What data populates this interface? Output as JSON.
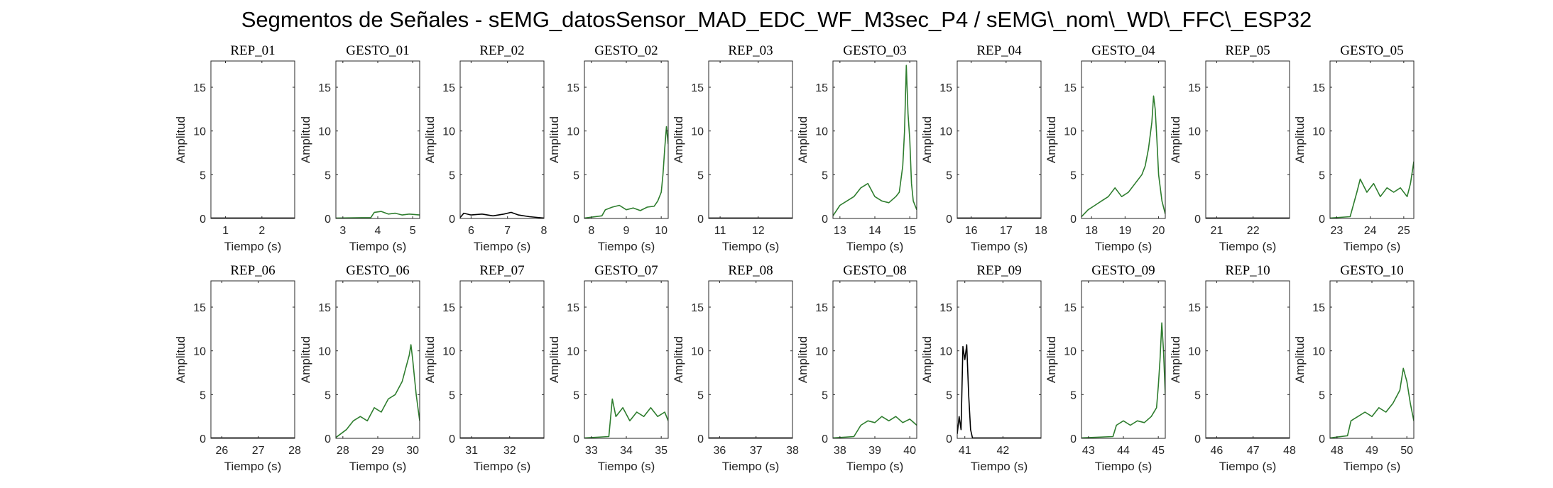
{
  "figure": {
    "title": "Segmentos de Señales - sEMG_datosSensor_MAD_EDC_WF_M3sec_P4 / sEMG\\_nom\\_WD\\_FFC\\_ESP32"
  },
  "colors": {
    "gesto": "#2e7d2e",
    "rep": "#000000",
    "axis": "#262626"
  },
  "chart_data": [
    {
      "type": "line",
      "title": "REP_01",
      "xlabel": "Tiempo (s)",
      "ylabel": "Amplitud",
      "xlim": [
        0.6,
        2.9
      ],
      "ylim": [
        0,
        18
      ],
      "xticks": [
        1,
        2
      ],
      "yticks": [
        0,
        5,
        10,
        15
      ],
      "series": [
        {
          "color": "#000000",
          "x": [
            0.6,
            2.9
          ],
          "y": [
            0.05,
            0.05
          ]
        }
      ]
    },
    {
      "type": "line",
      "title": "GESTO_01",
      "xlabel": "Tiempo (s)",
      "ylabel": "Amplitud",
      "xlim": [
        2.8,
        5.2
      ],
      "ylim": [
        0,
        18
      ],
      "xticks": [
        3,
        4,
        5
      ],
      "yticks": [
        0,
        5,
        10,
        15
      ],
      "series": [
        {
          "color": "#2e7d2e",
          "x": [
            2.8,
            3.8,
            3.9,
            4.1,
            4.3,
            4.5,
            4.7,
            4.9,
            5.2
          ],
          "y": [
            0.05,
            0.1,
            0.7,
            0.8,
            0.5,
            0.6,
            0.4,
            0.5,
            0.4
          ]
        }
      ]
    },
    {
      "type": "line",
      "title": "REP_02",
      "xlabel": "Tiempo (s)",
      "ylabel": "Amplitud",
      "xlim": [
        5.7,
        8.0
      ],
      "ylim": [
        0,
        18
      ],
      "xticks": [
        6,
        7,
        8
      ],
      "yticks": [
        0,
        5,
        10,
        15
      ],
      "series": [
        {
          "color": "#000000",
          "x": [
            5.7,
            5.8,
            6.0,
            6.3,
            6.6,
            6.9,
            7.1,
            7.3,
            7.6,
            8.0
          ],
          "y": [
            0.1,
            0.6,
            0.4,
            0.5,
            0.3,
            0.5,
            0.7,
            0.4,
            0.2,
            0.05
          ]
        }
      ]
    },
    {
      "type": "line",
      "title": "GESTO_02",
      "xlabel": "Tiempo (s)",
      "ylabel": "Amplitud",
      "xlim": [
        7.8,
        10.2
      ],
      "ylim": [
        0,
        18
      ],
      "xticks": [
        8,
        9,
        10
      ],
      "yticks": [
        0,
        5,
        10,
        15
      ],
      "series": [
        {
          "color": "#2e7d2e",
          "x": [
            7.8,
            8.3,
            8.4,
            8.6,
            8.8,
            9.0,
            9.2,
            9.4,
            9.6,
            9.8,
            9.9,
            10.0,
            10.05,
            10.1,
            10.15,
            10.2
          ],
          "y": [
            0.05,
            0.3,
            1.0,
            1.3,
            1.5,
            1.0,
            1.2,
            0.9,
            1.3,
            1.4,
            2.0,
            3.0,
            5.0,
            8.0,
            10.5,
            8.5
          ]
        }
      ]
    },
    {
      "type": "line",
      "title": "REP_03",
      "xlabel": "Tiempo (s)",
      "ylabel": "Amplitud",
      "xlim": [
        10.7,
        12.9
      ],
      "ylim": [
        0,
        18
      ],
      "xticks": [
        11,
        12
      ],
      "yticks": [
        0,
        5,
        10,
        15
      ],
      "series": [
        {
          "color": "#000000",
          "x": [
            10.7,
            12.9
          ],
          "y": [
            0.05,
            0.05
          ]
        }
      ]
    },
    {
      "type": "line",
      "title": "GESTO_03",
      "xlabel": "Tiempo (s)",
      "ylabel": "Amplitud",
      "xlim": [
        12.8,
        15.2
      ],
      "ylim": [
        0,
        18
      ],
      "xticks": [
        13,
        14,
        15
      ],
      "yticks": [
        0,
        5,
        10,
        15
      ],
      "series": [
        {
          "color": "#2e7d2e",
          "x": [
            12.8,
            13.0,
            13.2,
            13.4,
            13.6,
            13.8,
            14.0,
            14.2,
            14.4,
            14.6,
            14.7,
            14.8,
            14.85,
            14.9,
            14.95,
            15.0,
            15.05,
            15.1,
            15.2
          ],
          "y": [
            0.3,
            1.5,
            2.0,
            2.5,
            3.5,
            4.0,
            2.5,
            2.0,
            1.8,
            2.5,
            3.0,
            6.0,
            10.0,
            17.5,
            12.0,
            9.0,
            4.0,
            2.0,
            1.0
          ]
        }
      ]
    },
    {
      "type": "line",
      "title": "REP_04",
      "xlabel": "Tiempo (s)",
      "ylabel": "Amplitud",
      "xlim": [
        15.6,
        18.0
      ],
      "ylim": [
        0,
        18
      ],
      "xticks": [
        16,
        17,
        18
      ],
      "yticks": [
        0,
        5,
        10,
        15
      ],
      "series": [
        {
          "color": "#000000",
          "x": [
            15.6,
            18.0
          ],
          "y": [
            0.05,
            0.05
          ]
        }
      ]
    },
    {
      "type": "line",
      "title": "GESTO_04",
      "xlabel": "Tiempo (s)",
      "ylabel": "Amplitud",
      "xlim": [
        17.7,
        20.2
      ],
      "ylim": [
        0,
        18
      ],
      "xticks": [
        18,
        19,
        20
      ],
      "yticks": [
        0,
        5,
        10,
        15
      ],
      "series": [
        {
          "color": "#2e7d2e",
          "x": [
            17.7,
            17.9,
            18.1,
            18.3,
            18.5,
            18.7,
            18.9,
            19.1,
            19.3,
            19.5,
            19.6,
            19.7,
            19.8,
            19.85,
            19.9,
            19.95,
            20.0,
            20.1,
            20.2
          ],
          "y": [
            0.2,
            1.0,
            1.5,
            2.0,
            2.5,
            3.5,
            2.5,
            3.0,
            4.0,
            5.0,
            6.0,
            8.0,
            11.0,
            14.0,
            12.5,
            9.0,
            5.0,
            2.0,
            0.5
          ]
        }
      ]
    },
    {
      "type": "line",
      "title": "REP_05",
      "xlabel": "Tiempo (s)",
      "ylabel": "Amplitud",
      "xlim": [
        20.7,
        23.0
      ],
      "ylim": [
        0,
        18
      ],
      "xticks": [
        21,
        22
      ],
      "yticks": [
        0,
        5,
        10,
        15
      ],
      "series": [
        {
          "color": "#000000",
          "x": [
            20.7,
            23.0
          ],
          "y": [
            0.05,
            0.05
          ]
        }
      ]
    },
    {
      "type": "line",
      "title": "GESTO_05",
      "xlabel": "Tiempo (s)",
      "ylabel": "Amplitud",
      "xlim": [
        22.8,
        25.3
      ],
      "ylim": [
        0,
        18
      ],
      "xticks": [
        23,
        24,
        25
      ],
      "yticks": [
        0,
        5,
        10,
        15
      ],
      "series": [
        {
          "color": "#2e7d2e",
          "x": [
            22.8,
            23.4,
            23.6,
            23.7,
            23.9,
            24.1,
            24.3,
            24.5,
            24.7,
            24.9,
            25.1,
            25.2,
            25.3
          ],
          "y": [
            0.05,
            0.2,
            3.0,
            4.5,
            3.0,
            4.0,
            2.5,
            3.5,
            3.0,
            3.5,
            2.5,
            4.0,
            6.5
          ]
        }
      ]
    },
    {
      "type": "line",
      "title": "REP_06",
      "xlabel": "Tiempo (s)",
      "ylabel": "Amplitud",
      "xlim": [
        25.7,
        28.0
      ],
      "ylim": [
        0,
        18
      ],
      "xticks": [
        26,
        27,
        28
      ],
      "yticks": [
        0,
        5,
        10,
        15
      ],
      "series": [
        {
          "color": "#000000",
          "x": [
            25.7,
            28.0
          ],
          "y": [
            0.05,
            0.05
          ]
        }
      ]
    },
    {
      "type": "line",
      "title": "GESTO_06",
      "xlabel": "Tiempo (s)",
      "ylabel": "Amplitud",
      "xlim": [
        27.8,
        30.2
      ],
      "ylim": [
        0,
        18
      ],
      "xticks": [
        28,
        29,
        30
      ],
      "yticks": [
        0,
        5,
        10,
        15
      ],
      "series": [
        {
          "color": "#2e7d2e",
          "x": [
            27.8,
            28.1,
            28.3,
            28.5,
            28.7,
            28.9,
            29.1,
            29.3,
            29.5,
            29.7,
            29.8,
            29.9,
            29.95,
            30.0,
            30.05,
            30.1,
            30.2
          ],
          "y": [
            0.1,
            1.0,
            2.0,
            2.5,
            2.0,
            3.5,
            3.0,
            4.5,
            5.0,
            6.5,
            8.0,
            9.5,
            10.7,
            9.0,
            7.0,
            5.0,
            2.0
          ]
        }
      ]
    },
    {
      "type": "line",
      "title": "REP_07",
      "xlabel": "Tiempo (s)",
      "ylabel": "Amplitud",
      "xlim": [
        30.7,
        32.9
      ],
      "ylim": [
        0,
        18
      ],
      "xticks": [
        31,
        32
      ],
      "yticks": [
        0,
        5,
        10,
        15
      ],
      "series": [
        {
          "color": "#000000",
          "x": [
            30.7,
            32.9
          ],
          "y": [
            0.05,
            0.05
          ]
        }
      ]
    },
    {
      "type": "line",
      "title": "GESTO_07",
      "xlabel": "Tiempo (s)",
      "ylabel": "Amplitud",
      "xlim": [
        32.8,
        35.2
      ],
      "ylim": [
        0,
        18
      ],
      "xticks": [
        33,
        34,
        35
      ],
      "yticks": [
        0,
        5,
        10,
        15
      ],
      "series": [
        {
          "color": "#2e7d2e",
          "x": [
            32.8,
            33.5,
            33.6,
            33.7,
            33.9,
            34.1,
            34.3,
            34.5,
            34.7,
            34.9,
            35.1,
            35.2
          ],
          "y": [
            0.05,
            0.2,
            4.5,
            2.5,
            3.5,
            2.0,
            3.0,
            2.5,
            3.5,
            2.5,
            3.0,
            2.0
          ]
        }
      ]
    },
    {
      "type": "line",
      "title": "REP_08",
      "xlabel": "Tiempo (s)",
      "ylabel": "Amplitud",
      "xlim": [
        35.7,
        38.0
      ],
      "ylim": [
        0,
        18
      ],
      "xticks": [
        36,
        37,
        38
      ],
      "yticks": [
        0,
        5,
        10,
        15
      ],
      "series": [
        {
          "color": "#000000",
          "x": [
            35.7,
            38.0
          ],
          "y": [
            0.05,
            0.05
          ]
        }
      ]
    },
    {
      "type": "line",
      "title": "GESTO_08",
      "xlabel": "Tiempo (s)",
      "ylabel": "Amplitud",
      "xlim": [
        37.8,
        40.2
      ],
      "ylim": [
        0,
        18
      ],
      "xticks": [
        38,
        39,
        40
      ],
      "yticks": [
        0,
        5,
        10,
        15
      ],
      "series": [
        {
          "color": "#2e7d2e",
          "x": [
            37.8,
            38.4,
            38.6,
            38.8,
            39.0,
            39.2,
            39.4,
            39.6,
            39.8,
            40.0,
            40.2
          ],
          "y": [
            0.05,
            0.2,
            1.5,
            2.0,
            1.8,
            2.5,
            2.0,
            2.5,
            1.8,
            2.2,
            1.5
          ]
        }
      ]
    },
    {
      "type": "line",
      "title": "REP_09",
      "xlabel": "Tiempo (s)",
      "ylabel": "Amplitud",
      "xlim": [
        40.8,
        43.0
      ],
      "ylim": [
        0,
        18
      ],
      "xticks": [
        41,
        42
      ],
      "yticks": [
        0,
        5,
        10,
        15
      ],
      "series": [
        {
          "color": "#000000",
          "x": [
            40.8,
            40.85,
            40.9,
            40.95,
            41.0,
            41.05,
            41.1,
            41.15,
            41.2,
            43.0
          ],
          "y": [
            0.5,
            2.5,
            1.0,
            10.5,
            9.0,
            10.7,
            5.0,
            1.0,
            0.05,
            0.05
          ]
        }
      ]
    },
    {
      "type": "line",
      "title": "GESTO_09",
      "xlabel": "Tiempo (s)",
      "ylabel": "Amplitud",
      "xlim": [
        42.8,
        45.2
      ],
      "ylim": [
        0,
        18
      ],
      "xticks": [
        43,
        44,
        45
      ],
      "yticks": [
        0,
        5,
        10,
        15
      ],
      "series": [
        {
          "color": "#2e7d2e",
          "x": [
            42.8,
            43.7,
            43.8,
            44.0,
            44.2,
            44.4,
            44.6,
            44.8,
            44.95,
            45.0,
            45.05,
            45.1,
            45.15,
            45.2
          ],
          "y": [
            0.05,
            0.2,
            1.5,
            2.0,
            1.5,
            2.0,
            1.8,
            2.5,
            3.5,
            6.0,
            9.0,
            13.2,
            10.0,
            5.0
          ]
        }
      ]
    },
    {
      "type": "line",
      "title": "REP_10",
      "xlabel": "Tiempo (s)",
      "ylabel": "Amplitud",
      "xlim": [
        45.7,
        48.0
      ],
      "ylim": [
        0,
        18
      ],
      "xticks": [
        46,
        47,
        48
      ],
      "yticks": [
        0,
        5,
        10,
        15
      ],
      "series": [
        {
          "color": "#000000",
          "x": [
            45.7,
            48.0
          ],
          "y": [
            0.05,
            0.05
          ]
        }
      ]
    },
    {
      "type": "line",
      "title": "GESTO_10",
      "xlabel": "Tiempo (s)",
      "ylabel": "Amplitud",
      "xlim": [
        47.8,
        50.2
      ],
      "ylim": [
        0,
        18
      ],
      "xticks": [
        48,
        49,
        50
      ],
      "yticks": [
        0,
        5,
        10,
        15
      ],
      "series": [
        {
          "color": "#2e7d2e",
          "x": [
            47.8,
            48.3,
            48.4,
            48.6,
            48.8,
            49.0,
            49.2,
            49.4,
            49.6,
            49.8,
            49.9,
            50.0,
            50.1,
            50.2
          ],
          "y": [
            0.05,
            0.3,
            2.0,
            2.5,
            3.0,
            2.5,
            3.5,
            3.0,
            4.0,
            5.5,
            8.0,
            6.5,
            4.0,
            2.0
          ]
        }
      ]
    }
  ]
}
